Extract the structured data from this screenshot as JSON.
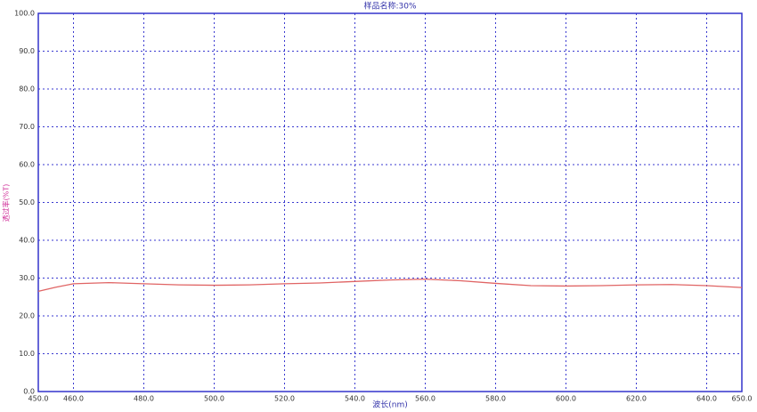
{
  "chart_data": {
    "type": "line",
    "title": "样品名称:30%",
    "x_label": "波长(nm)",
    "y_label": "透过率(%T)",
    "xlim": [
      450,
      650
    ],
    "ylim": [
      0,
      100
    ],
    "xticks": [
      {
        "value": 450,
        "label": "450.0"
      },
      {
        "value": 460,
        "label": "460.0"
      },
      {
        "value": 480,
        "label": "480.0"
      },
      {
        "value": 500,
        "label": "500.0"
      },
      {
        "value": 520,
        "label": "520.0"
      },
      {
        "value": 540,
        "label": "540.0"
      },
      {
        "value": 560,
        "label": "560.0"
      },
      {
        "value": 580,
        "label": "580.0"
      },
      {
        "value": 600,
        "label": "600.0"
      },
      {
        "value": 620,
        "label": "620.0"
      },
      {
        "value": 640,
        "label": "640.0"
      },
      {
        "value": 650,
        "label": "650.0"
      }
    ],
    "yticks": [
      {
        "value": 0,
        "label": "0.0"
      },
      {
        "value": 10,
        "label": "10.0"
      },
      {
        "value": 20,
        "label": "20.0"
      },
      {
        "value": 30,
        "label": "30.0"
      },
      {
        "value": 40,
        "label": "40.0"
      },
      {
        "value": 50,
        "label": "50.0"
      },
      {
        "value": 60,
        "label": "60.0"
      },
      {
        "value": 70,
        "label": "70.0"
      },
      {
        "value": 80,
        "label": "80.0"
      },
      {
        "value": 90,
        "label": "90.0"
      },
      {
        "value": 100,
        "label": "100.0"
      }
    ],
    "grid": true,
    "x": [
      450,
      455,
      460,
      470,
      480,
      490,
      500,
      510,
      520,
      530,
      540,
      550,
      560,
      570,
      580,
      590,
      600,
      610,
      620,
      630,
      640,
      650
    ],
    "series": [
      {
        "color": "#e06464",
        "values": [
          26.5,
          27.6,
          28.5,
          28.8,
          28.5,
          28.2,
          28.1,
          28.2,
          28.5,
          28.7,
          29.1,
          29.5,
          29.7,
          29.3,
          28.6,
          28.0,
          27.9,
          28.0,
          28.2,
          28.3,
          28.0,
          27.5
        ]
      }
    ]
  }
}
